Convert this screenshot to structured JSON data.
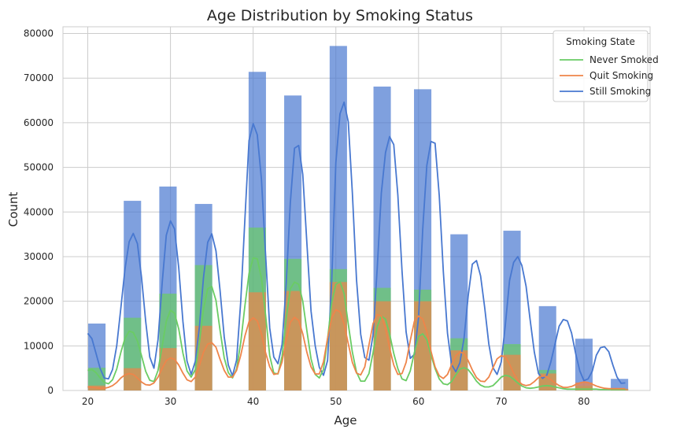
{
  "chart_data": {
    "type": "bar",
    "title": "Age Distribution by Smoking Status",
    "xlabel": "Age",
    "ylabel": "Count",
    "xlim": [
      17,
      88
    ],
    "ylim": [
      0,
      81500
    ],
    "xticks": [
      20,
      30,
      40,
      50,
      60,
      70,
      80
    ],
    "yticks": [
      0,
      10000,
      20000,
      30000,
      40000,
      50000,
      60000,
      70000,
      80000
    ],
    "grid": true,
    "bin_width": 2.1,
    "bin_centers": [
      21.1,
      25.4,
      29.7,
      34.0,
      40.5,
      44.8,
      50.3,
      55.6,
      60.5,
      64.9,
      71.3,
      75.6,
      80.0,
      84.3
    ],
    "series": [
      {
        "name": "Still Smoking",
        "color": "#4878d0",
        "bar_values": [
          15000,
          42500,
          45700,
          41800,
          71400,
          66100,
          77200,
          68100,
          67500,
          35000,
          35800,
          18900,
          11600,
          2600
        ],
        "kde_x": [
          20.0,
          20.5,
          21.0,
          21.5,
          22.0,
          22.5,
          23.0,
          23.5,
          24.0,
          24.5,
          25.0,
          25.5,
          26.0,
          26.5,
          27.0,
          27.5,
          28.0,
          28.5,
          29.0,
          29.5,
          30.0,
          30.5,
          31.0,
          31.5,
          32.0,
          32.5,
          33.0,
          33.5,
          34.0,
          34.5,
          35.0,
          35.5,
          36.0,
          36.5,
          37.0,
          37.5,
          38.0,
          38.5,
          39.0,
          39.5,
          40.0,
          40.5,
          41.0,
          41.5,
          42.0,
          42.5,
          43.0,
          43.5,
          44.0,
          44.5,
          45.0,
          45.5,
          46.0,
          46.5,
          47.0,
          47.5,
          48.0,
          48.5,
          49.0,
          49.5,
          50.0,
          50.5,
          51.0,
          51.5,
          52.0,
          52.5,
          53.0,
          53.5,
          54.0,
          54.5,
          55.0,
          55.5,
          56.0,
          56.5,
          57.0,
          57.5,
          58.0,
          58.5,
          59.0,
          59.5,
          60.0,
          60.5,
          61.0,
          61.5,
          62.0,
          62.5,
          63.0,
          63.5,
          64.0,
          64.5,
          65.0,
          65.5,
          66.0,
          66.5,
          67.0,
          67.5,
          68.0,
          68.5,
          69.0,
          69.5,
          70.0,
          70.5,
          71.0,
          71.5,
          72.0,
          72.5,
          73.0,
          73.5,
          74.0,
          74.5,
          75.0,
          75.5,
          76.0,
          76.5,
          77.0,
          77.5,
          78.0,
          78.5,
          79.0,
          79.5,
          80.0,
          80.5,
          81.0,
          81.5,
          82.0,
          82.5,
          83.0,
          83.5,
          84.0,
          84.5,
          85.0
        ],
        "kde_y": [
          12800,
          11600,
          8300,
          4900,
          2800,
          2600,
          4700,
          10000,
          18400,
          27200,
          33300,
          35200,
          32900,
          25400,
          15500,
          7500,
          5000,
          11400,
          24200,
          34800,
          38000,
          36200,
          27500,
          15500,
          6600,
          3600,
          6500,
          14300,
          25400,
          33200,
          35100,
          31300,
          22400,
          12000,
          5700,
          3300,
          6800,
          20000,
          38500,
          56000,
          59800,
          57300,
          47300,
          30600,
          14000,
          7500,
          6000,
          10300,
          24100,
          42100,
          54300,
          54900,
          48400,
          32800,
          17800,
          10000,
          5200,
          3400,
          6700,
          24800,
          51000,
          62000,
          64600,
          60200,
          44300,
          24800,
          12600,
          7400,
          6800,
          12500,
          27400,
          44200,
          53300,
          56900,
          55100,
          43800,
          26800,
          13100,
          7200,
          8100,
          16300,
          36100,
          50400,
          55800,
          55400,
          43700,
          26600,
          12800,
          5800,
          4200,
          6200,
          11700,
          21100,
          28300,
          29100,
          25700,
          18500,
          10400,
          5100,
          3600,
          6400,
          14700,
          24600,
          28700,
          30000,
          28000,
          23400,
          15800,
          8600,
          3800,
          2700,
          3400,
          6400,
          10400,
          14400,
          15900,
          15600,
          12900,
          8300,
          4400,
          2200,
          2600,
          4300,
          7900,
          9600,
          9800,
          8700,
          5700,
          3000,
          1600,
          1700,
          2400,
          2600
        ]
      },
      {
        "name": "Never Smoked",
        "color": "#6acc64",
        "bar_values": [
          5100,
          16300,
          21700,
          28100,
          36500,
          29500,
          27200,
          23000,
          22600,
          11700,
          10400,
          4600,
          1000,
          300
        ],
        "kde_x": [
          20.0,
          20.5,
          21.0,
          21.5,
          22.0,
          22.5,
          23.0,
          23.5,
          24.0,
          24.5,
          25.0,
          25.5,
          26.0,
          26.5,
          27.0,
          27.5,
          28.0,
          28.5,
          29.0,
          29.5,
          30.0,
          30.5,
          31.0,
          31.5,
          32.0,
          32.5,
          33.0,
          33.5,
          34.0,
          34.5,
          35.0,
          35.5,
          36.0,
          36.5,
          37.0,
          37.5,
          38.0,
          38.5,
          39.0,
          39.5,
          40.0,
          40.5,
          41.0,
          41.5,
          42.0,
          42.5,
          43.0,
          43.5,
          44.0,
          44.5,
          45.0,
          45.5,
          46.0,
          46.5,
          47.0,
          47.5,
          48.0,
          48.5,
          49.0,
          49.5,
          50.0,
          50.5,
          51.0,
          51.5,
          52.0,
          52.5,
          53.0,
          53.5,
          54.0,
          54.5,
          55.0,
          55.5,
          56.0,
          56.5,
          57.0,
          57.5,
          58.0,
          58.5,
          59.0,
          59.5,
          60.0,
          60.5,
          61.0,
          61.5,
          62.0,
          62.5,
          63.0,
          63.5,
          64.0,
          64.5,
          65.0,
          65.5,
          66.0,
          66.5,
          67.0,
          67.5,
          68.0,
          68.5,
          69.0,
          69.5,
          70.0,
          70.5,
          71.0,
          71.5,
          72.0,
          72.5,
          73.0,
          73.5,
          74.0,
          74.5,
          75.0,
          75.5,
          76.0,
          76.5,
          77.0,
          77.5,
          78.0,
          78.5,
          79.0,
          79.5,
          80.0,
          80.5,
          81.0,
          81.5,
          82.0,
          82.5,
          83.0,
          83.5,
          84.0,
          84.5,
          85.0
        ],
        "kde_y": [
          4500,
          4700,
          4000,
          2800,
          1800,
          1500,
          2400,
          4800,
          8500,
          11700,
          13300,
          13000,
          11100,
          7800,
          4300,
          2300,
          2000,
          4500,
          10000,
          15500,
          18000,
          17300,
          13800,
          8400,
          4400,
          3000,
          4700,
          10800,
          18300,
          22800,
          23300,
          20200,
          13500,
          7300,
          4000,
          2800,
          4800,
          10800,
          19000,
          26200,
          29700,
          29500,
          25200,
          17000,
          7800,
          3900,
          3700,
          7700,
          16300,
          22800,
          24300,
          23800,
          20000,
          13300,
          7100,
          3600,
          2800,
          4700,
          11500,
          19700,
          23800,
          24400,
          21700,
          14900,
          8600,
          4100,
          2100,
          2100,
          3800,
          8500,
          14300,
          16700,
          16000,
          12700,
          8300,
          4900,
          2600,
          2200,
          4400,
          8500,
          12100,
          12700,
          11400,
          8000,
          4900,
          2600,
          1500,
          1300,
          2000,
          3500,
          4800,
          5100,
          4700,
          3500,
          2100,
          1200,
          800,
          800,
          1100,
          2000,
          3000,
          3400,
          3200,
          2500,
          1700,
          1000,
          600,
          500,
          600,
          800,
          1000,
          1100,
          1000,
          800,
          600,
          400,
          300,
          300,
          300,
          300,
          300,
          300,
          300,
          300,
          200,
          200,
          200,
          200,
          200,
          200,
          200
        ]
      },
      {
        "name": "Quit Smoking",
        "color": "#ee854a",
        "bar_values": [
          1100,
          5000,
          9500,
          14500,
          22000,
          22300,
          24300,
          20000,
          20000,
          9000,
          8000,
          3800,
          1800,
          400
        ],
        "kde_x": [
          20.0,
          20.5,
          21.0,
          21.5,
          22.0,
          22.5,
          23.0,
          23.5,
          24.0,
          24.5,
          25.0,
          25.5,
          26.0,
          26.5,
          27.0,
          27.5,
          28.0,
          28.5,
          29.0,
          29.5,
          30.0,
          30.5,
          31.0,
          31.5,
          32.0,
          32.5,
          33.0,
          33.5,
          34.0,
          34.5,
          35.0,
          35.5,
          36.0,
          36.5,
          37.0,
          37.5,
          38.0,
          38.5,
          39.0,
          39.5,
          40.0,
          40.5,
          41.0,
          41.5,
          42.0,
          42.5,
          43.0,
          43.5,
          44.0,
          44.5,
          45.0,
          45.5,
          46.0,
          46.5,
          47.0,
          47.5,
          48.0,
          48.5,
          49.0,
          49.5,
          50.0,
          50.5,
          51.0,
          51.5,
          52.0,
          52.5,
          53.0,
          53.5,
          54.0,
          54.5,
          55.0,
          55.5,
          56.0,
          56.5,
          57.0,
          57.5,
          58.0,
          58.5,
          59.0,
          59.5,
          60.0,
          60.5,
          61.0,
          61.5,
          62.0,
          62.5,
          63.0,
          63.5,
          64.0,
          64.5,
          65.0,
          65.5,
          66.0,
          66.5,
          67.0,
          67.5,
          68.0,
          68.5,
          69.0,
          69.5,
          70.0,
          70.5,
          71.0,
          71.5,
          72.0,
          72.5,
          73.0,
          73.5,
          74.0,
          74.5,
          75.0,
          75.5,
          76.0,
          76.5,
          77.0,
          77.5,
          78.0,
          78.5,
          79.0,
          79.5,
          80.0,
          80.5,
          81.0,
          81.5,
          82.0,
          82.5,
          83.0,
          83.5,
          84.0,
          84.5,
          85.0
        ],
        "kde_y": [
          800,
          700,
          600,
          500,
          500,
          700,
          1100,
          1800,
          2800,
          3500,
          3800,
          3600,
          2800,
          1900,
          1300,
          1200,
          1700,
          3000,
          5000,
          6700,
          7300,
          7000,
          5700,
          3900,
          2400,
          2000,
          3000,
          5600,
          8600,
          10400,
          10700,
          9700,
          7000,
          4500,
          3000,
          3000,
          4500,
          7900,
          12200,
          15400,
          16300,
          15600,
          12700,
          8500,
          5300,
          3600,
          3800,
          6400,
          11300,
          15300,
          16400,
          15700,
          12700,
          8500,
          5300,
          3700,
          3700,
          6400,
          11700,
          16300,
          18100,
          17600,
          14900,
          10500,
          6300,
          3900,
          3500,
          5300,
          10200,
          15000,
          17000,
          16700,
          14000,
          9500,
          5700,
          3600,
          3800,
          6300,
          11200,
          15500,
          16700,
          16000,
          13200,
          8800,
          5300,
          3300,
          2700,
          3600,
          5800,
          7800,
          8600,
          8300,
          6700,
          4600,
          2900,
          2100,
          2000,
          3000,
          5100,
          7100,
          7800,
          7500,
          5900,
          3900,
          2300,
          1400,
          1100,
          1300,
          2000,
          2900,
          3300,
          3100,
          2400,
          1700,
          1100,
          700,
          700,
          900,
          1300,
          1700,
          1900,
          1800,
          1400,
          1000,
          700,
          500,
          400,
          400,
          400,
          400,
          400
        ]
      }
    ],
    "legend": {
      "title": "Smoking State",
      "position": "top-right",
      "items": [
        "Never Smoked",
        "Quit Smoking",
        "Still Smoking"
      ],
      "colors": [
        "#6acc64",
        "#ee854a",
        "#4878d0"
      ]
    }
  }
}
